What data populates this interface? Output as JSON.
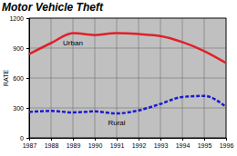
{
  "chart_data": {
    "type": "line",
    "title": "Motor Vehicle Theft",
    "y_label": "RATE",
    "x": [
      1987,
      1988,
      1989,
      1990,
      1991,
      1992,
      1993,
      1994,
      1995,
      1996
    ],
    "series": [
      {
        "name": "Urban",
        "color": "#e0202a",
        "line_style": "solid",
        "values": [
          840,
          950,
          1050,
          1030,
          1050,
          1040,
          1020,
          960,
          870,
          750
        ]
      },
      {
        "name": "Rural",
        "color": "#1a1ad0",
        "line_style": "dashed",
        "values": [
          260,
          270,
          255,
          265,
          245,
          275,
          340,
          410,
          420,
          310
        ]
      }
    ],
    "xlim": [
      1987,
      1996
    ],
    "xticks": [
      1987,
      1988,
      1989,
      1990,
      1991,
      1992,
      1993,
      1994,
      1995,
      1996
    ],
    "ylim": [
      0,
      1200
    ],
    "yticks": [
      0,
      300,
      600,
      900,
      1200
    ],
    "grid": true
  }
}
